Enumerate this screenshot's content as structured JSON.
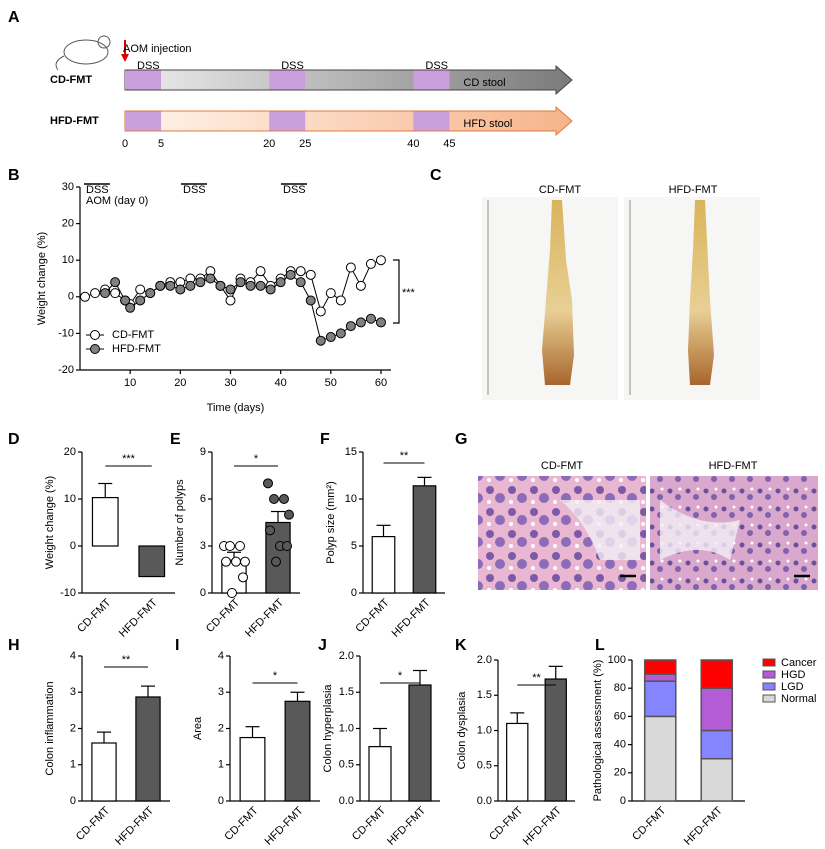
{
  "panel_labels": [
    "A",
    "B",
    "C",
    "D",
    "E",
    "F",
    "G",
    "H",
    "I",
    "J",
    "K",
    "L"
  ],
  "timeline": {
    "injection": "AOM injection",
    "rows": [
      {
        "name": "CD-FMT",
        "stool": "CD stool"
      },
      {
        "name": "HFD-FMT",
        "stool": "HFD stool"
      }
    ],
    "period_label": "DSS",
    "xlim": [
      0,
      62
    ],
    "xticks": [
      0,
      5,
      20,
      25,
      40,
      45
    ]
  },
  "photos": {
    "colon": {
      "labels": [
        "CD-FMT",
        "HFD-FMT"
      ]
    },
    "histology": {
      "labels": [
        "CD-FMT",
        "HFD-FMT"
      ]
    }
  },
  "chart_data": [
    {
      "type": "line",
      "xlabel": "Time (days)",
      "ylabel": "Weight change (%)",
      "annotations": [
        "DSS",
        "DSS",
        "DSS",
        "AOM (day 0)",
        "***"
      ],
      "xlim": [
        0,
        62
      ],
      "xticks": [
        10,
        20,
        30,
        40,
        50,
        60
      ],
      "ylim": [
        -20,
        30
      ],
      "yticks": [
        -20,
        -10,
        0,
        10,
        20,
        30
      ],
      "legend": "lower left",
      "series": [
        {
          "name": "CD-FMT",
          "color": "#ffffff",
          "x": [
            1,
            3,
            5,
            7,
            9,
            10,
            12,
            14,
            16,
            18,
            20,
            22,
            24,
            26,
            28,
            30,
            32,
            34,
            36,
            38,
            40,
            42,
            44,
            46,
            48,
            50,
            52,
            54,
            56,
            58,
            60
          ],
          "values": [
            0,
            1,
            2,
            1,
            -1,
            -2,
            2,
            1,
            3,
            4,
            4,
            5,
            5,
            7,
            3,
            -1,
            5,
            4,
            7,
            3,
            5,
            7,
            7,
            6,
            -4,
            1,
            -1,
            8,
            3,
            9,
            10
          ]
        },
        {
          "name": "HFD-FMT",
          "color": "#808080",
          "x": [
            5,
            7,
            9,
            10,
            12,
            14,
            16,
            18,
            20,
            22,
            24,
            26,
            28,
            30,
            32,
            34,
            36,
            38,
            40,
            42,
            44,
            46,
            48,
            50,
            52,
            54,
            56,
            58,
            60
          ],
          "values": [
            1,
            4,
            -1,
            -3,
            -1,
            1,
            3,
            3,
            2,
            3,
            4,
            5,
            3,
            2,
            4,
            3,
            3,
            2,
            4,
            6,
            4,
            -1,
            -12,
            -11,
            -10,
            -8,
            -7,
            -6,
            -7
          ]
        }
      ]
    },
    {
      "type": "bar",
      "ylabel": "Weight change (%)",
      "categories": [
        "CD-FMT",
        "HFD-FMT"
      ],
      "values": [
        10.3,
        -6.5
      ],
      "errors": [
        3.0,
        1.8
      ],
      "colors": [
        "#ffffff",
        "#595959"
      ],
      "ylim": [
        -10,
        20
      ],
      "yticks": [
        -10,
        0,
        10,
        20
      ],
      "significance": "***"
    },
    {
      "type": "bar",
      "ylabel": "Number of  polyps",
      "categories": [
        "CD-FMT",
        "HFD-FMT"
      ],
      "values": [
        2.1,
        4.5
      ],
      "errors": [
        0.5,
        0.7
      ],
      "colors": [
        "#ffffff",
        "#595959"
      ],
      "points": [
        [
          3,
          3,
          3,
          2,
          2,
          2,
          1,
          0
        ],
        [
          7,
          6,
          6,
          5,
          4,
          3,
          3,
          2
        ]
      ],
      "point_colors": [
        "#ffffff",
        "#595959"
      ],
      "ylim": [
        0,
        9
      ],
      "yticks": [
        0,
        3,
        6,
        9
      ],
      "significance": "*"
    },
    {
      "type": "bar",
      "ylabel": "Polyp size (mm²)",
      "categories": [
        "CD-FMT",
        "HFD-FMT"
      ],
      "values": [
        6.0,
        11.4
      ],
      "errors": [
        1.2,
        0.9
      ],
      "colors": [
        "#ffffff",
        "#595959"
      ],
      "ylim": [
        0,
        15
      ],
      "yticks": [
        0,
        5,
        10,
        15
      ],
      "significance": "**"
    },
    {
      "type": "bar",
      "ylabel": "Colon inflammation",
      "categories": [
        "CD-FMT",
        "HFD-FMT"
      ],
      "values": [
        1.6,
        2.87
      ],
      "errors": [
        0.3,
        0.3
      ],
      "colors": [
        "#ffffff",
        "#595959"
      ],
      "ylim": [
        0,
        4
      ],
      "yticks": [
        0,
        1,
        2,
        3,
        4
      ],
      "significance": "**"
    },
    {
      "type": "bar",
      "ylabel": "Area",
      "categories": [
        "CD-FMT",
        "HFD-FMT"
      ],
      "values": [
        1.75,
        2.75
      ],
      "errors": [
        0.3,
        0.25
      ],
      "colors": [
        "#ffffff",
        "#595959"
      ],
      "ylim": [
        0,
        4
      ],
      "yticks": [
        0,
        1,
        2,
        3,
        4
      ],
      "significance": "*"
    },
    {
      "type": "bar",
      "ylabel": "Colon hyperplasia",
      "categories": [
        "CD-FMT",
        "HFD-FMT"
      ],
      "values": [
        0.75,
        1.6
      ],
      "errors": [
        0.25,
        0.2
      ],
      "colors": [
        "#ffffff",
        "#595959"
      ],
      "ylim": [
        0,
        2
      ],
      "yticks": [
        {
          "value": 0,
          "label": "0.0"
        },
        0.5,
        {
          "value": 1,
          "label": "1.0"
        },
        1.5,
        {
          "value": 2,
          "label": "2.0"
        }
      ],
      "significance": "*"
    },
    {
      "type": "bar",
      "ylabel": "Colon dysplasia",
      "categories": [
        "CD-FMT",
        "HFD-FMT"
      ],
      "values": [
        1.1,
        1.73
      ],
      "errors": [
        0.15,
        0.18
      ],
      "colors": [
        "#ffffff",
        "#595959"
      ],
      "ylim": [
        0,
        2
      ],
      "yticks": [
        {
          "value": 0,
          "label": "0.0"
        },
        0.5,
        {
          "value": 1,
          "label": "1.0"
        },
        1.5,
        {
          "value": 2,
          "label": "2.0"
        }
      ],
      "significance": "**"
    },
    {
      "type": "stacked_bar",
      "ylabel": "Pathological assessment (%)",
      "categories": [
        "CD-FMT",
        "HFD-FMT"
      ],
      "legend": "top right",
      "ylim": [
        0,
        100
      ],
      "yticks": [
        0,
        20,
        40,
        60,
        80,
        100
      ],
      "series": [
        {
          "name": "Cancer",
          "color": "#ff0000",
          "values": [
            10,
            20
          ]
        },
        {
          "name": "HGD",
          "color": "#b35cd6",
          "values": [
            5,
            30
          ]
        },
        {
          "name": "LGD",
          "color": "#8585ff",
          "values": [
            25,
            20
          ]
        },
        {
          "name": "Normal",
          "color": "#d9d9d9",
          "values": [
            60,
            30
          ]
        }
      ]
    }
  ]
}
